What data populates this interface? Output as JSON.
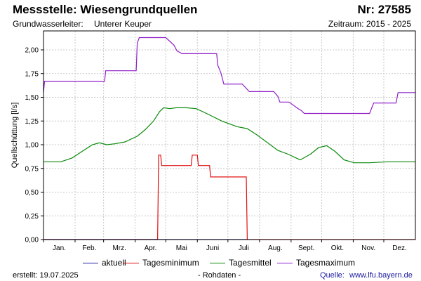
{
  "header": {
    "title": "Messstelle: Wiesengrundquellen",
    "nr": "Nr: 27585",
    "aquifer_label": "Grundwasserleiter:",
    "aquifer_value": "Unterer Keuper",
    "period": "Zeitraum: 2015 - 2025"
  },
  "footer": {
    "created": "erstellt:  19.07.2025",
    "raw": "- Rohdaten -",
    "source_label": "Quelle:",
    "source_url": "www.lfu.bayern.de"
  },
  "chart_data": {
    "type": "line",
    "ylabel": "Quellschüttung [l/s]",
    "xlabel": "",
    "ylim": [
      0,
      2.2
    ],
    "xlim": [
      0,
      365
    ],
    "grid": true,
    "legend_placement": "bottom",
    "y_ticks": [
      {
        "value": 0.0,
        "label": "0,00"
      },
      {
        "value": 0.25,
        "label": "0,25"
      },
      {
        "value": 0.5,
        "label": "0,50"
      },
      {
        "value": 0.75,
        "label": "0,75"
      },
      {
        "value": 1.0,
        "label": "1,00"
      },
      {
        "value": 1.25,
        "label": "1,25"
      },
      {
        "value": 1.5,
        "label": "1,50"
      },
      {
        "value": 1.75,
        "label": "1,75"
      },
      {
        "value": 2.0,
        "label": "2,00"
      }
    ],
    "months": [
      "Jan.",
      "Feb.",
      "Mrz.",
      "Apr.",
      "Mai",
      "Juni",
      "Juli",
      "Aug.",
      "Sept.",
      "Okt.",
      "Nov.",
      "Dez."
    ],
    "month_starts": [
      0,
      31,
      59,
      90,
      120,
      151,
      181,
      212,
      243,
      273,
      304,
      334
    ],
    "series": [
      {
        "name": "aktuell",
        "color": "#1f1fa8",
        "points": [
          [
            0,
            0
          ],
          [
            200,
            0
          ]
        ]
      },
      {
        "name": "Tagesminimum",
        "color": "#e01010",
        "points": [
          [
            0,
            0
          ],
          [
            112,
            0
          ],
          [
            113,
            0.89
          ],
          [
            115,
            0.89
          ],
          [
            116,
            0.78
          ],
          [
            145,
            0.78
          ],
          [
            146,
            0.89
          ],
          [
            151,
            0.89
          ],
          [
            152,
            0.78
          ],
          [
            163,
            0.78
          ],
          [
            164,
            0.66
          ],
          [
            199,
            0.66
          ],
          [
            200,
            0
          ],
          [
            365,
            0
          ]
        ]
      },
      {
        "name": "Tagesmittel",
        "color": "#0a8a0a",
        "points": [
          [
            0,
            0.82
          ],
          [
            10,
            0.82
          ],
          [
            17,
            0.82
          ],
          [
            28,
            0.86
          ],
          [
            38,
            0.93
          ],
          [
            48,
            1.0
          ],
          [
            55,
            1.02
          ],
          [
            62,
            1.0
          ],
          [
            70,
            1.01
          ],
          [
            80,
            1.03
          ],
          [
            92,
            1.09
          ],
          [
            100,
            1.16
          ],
          [
            108,
            1.25
          ],
          [
            114,
            1.35
          ],
          [
            118,
            1.39
          ],
          [
            124,
            1.38
          ],
          [
            130,
            1.39
          ],
          [
            140,
            1.39
          ],
          [
            150,
            1.38
          ],
          [
            160,
            1.33
          ],
          [
            175,
            1.25
          ],
          [
            190,
            1.19
          ],
          [
            200,
            1.17
          ],
          [
            210,
            1.1
          ],
          [
            220,
            1.02
          ],
          [
            230,
            0.94
          ],
          [
            240,
            0.9
          ],
          [
            248,
            0.86
          ],
          [
            252,
            0.84
          ],
          [
            262,
            0.9
          ],
          [
            270,
            0.97
          ],
          [
            278,
            0.99
          ],
          [
            286,
            0.93
          ],
          [
            295,
            0.84
          ],
          [
            305,
            0.81
          ],
          [
            320,
            0.81
          ],
          [
            338,
            0.82
          ],
          [
            365,
            0.82
          ]
        ]
      },
      {
        "name": "Tagesmaximum",
        "color": "#9020c8",
        "points": [
          [
            0,
            1.55
          ],
          [
            1,
            1.67
          ],
          [
            60,
            1.67
          ],
          [
            61,
            1.78
          ],
          [
            91,
            1.78
          ],
          [
            92,
            2.07
          ],
          [
            94,
            2.13
          ],
          [
            120,
            2.13
          ],
          [
            123,
            2.1
          ],
          [
            128,
            2.05
          ],
          [
            131,
            1.99
          ],
          [
            136,
            1.96
          ],
          [
            152,
            1.96
          ],
          [
            170,
            1.96
          ],
          [
            171,
            1.84
          ],
          [
            174,
            1.76
          ],
          [
            177,
            1.64
          ],
          [
            195,
            1.64
          ],
          [
            202,
            1.56
          ],
          [
            226,
            1.56
          ],
          [
            230,
            1.51
          ],
          [
            232,
            1.45
          ],
          [
            241,
            1.45
          ],
          [
            250,
            1.38
          ],
          [
            253,
            1.36
          ],
          [
            256,
            1.33
          ],
          [
            290,
            1.33
          ],
          [
            320,
            1.33
          ],
          [
            324,
            1.44
          ],
          [
            335,
            1.44
          ],
          [
            346,
            1.44
          ],
          [
            348,
            1.55
          ],
          [
            365,
            1.55
          ]
        ]
      }
    ]
  }
}
